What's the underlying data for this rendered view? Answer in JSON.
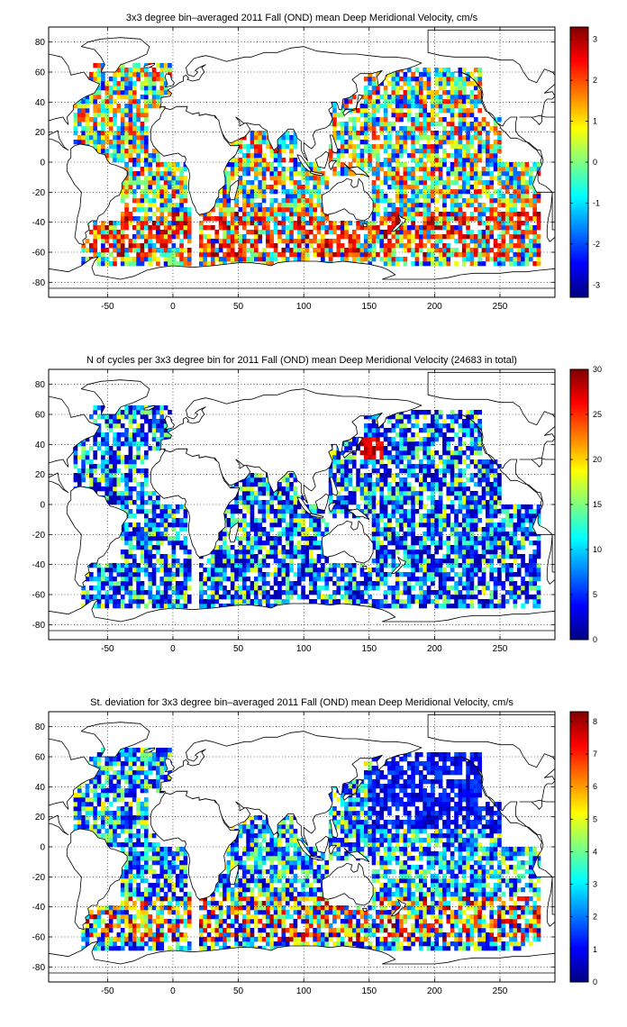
{
  "chart_data": [
    {
      "type": "heatmap",
      "title": "3x3 degree bin–averaged 2011 Fall (OND) mean Deep Meridional Velocity, cm/s",
      "xlabel": "",
      "ylabel": "",
      "xlim": [
        -95,
        292
      ],
      "ylim": [
        -90,
        90
      ],
      "xticks": [
        -50,
        0,
        50,
        100,
        150,
        200,
        250
      ],
      "yticks": [
        80,
        60,
        40,
        20,
        0,
        -20,
        -40,
        -60,
        -80
      ],
      "grid": true,
      "colormap": "jet",
      "clim": [
        -3.3,
        3.3
      ],
      "colorbar_ticks": [
        3,
        2,
        1,
        0,
        -1,
        -2,
        -3
      ],
      "bin_size_deg": 3,
      "field": "mean",
      "seed": 11
    },
    {
      "type": "heatmap",
      "title": "N of cycles per 3x3 degree bin for 2011 Fall (OND) mean Deep Meridional Velocity (24683 in total)",
      "xlabel": "",
      "ylabel": "",
      "xlim": [
        -95,
        292
      ],
      "ylim": [
        -90,
        90
      ],
      "xticks": [
        -50,
        0,
        50,
        100,
        150,
        200,
        250
      ],
      "yticks": [
        80,
        60,
        40,
        20,
        0,
        -20,
        -40,
        -60,
        -80
      ],
      "grid": true,
      "colormap": "jet",
      "clim": [
        0,
        30
      ],
      "colorbar_ticks": [
        30,
        25,
        20,
        15,
        10,
        5,
        0
      ],
      "bin_size_deg": 3,
      "field": "count",
      "seed": 23
    },
    {
      "type": "heatmap",
      "title": "St. deviation for 3x3 degree bin–averaged 2011 Fall (OND) mean Deep Meridional Velocity, cm/s",
      "xlabel": "",
      "ylabel": "",
      "xlim": [
        -95,
        292
      ],
      "ylim": [
        -90,
        90
      ],
      "xticks": [
        -50,
        0,
        50,
        100,
        150,
        200,
        250
      ],
      "yticks": [
        80,
        60,
        40,
        20,
        0,
        -20,
        -40,
        -60,
        -80
      ],
      "grid": true,
      "colormap": "jet",
      "clim": [
        0,
        8.3
      ],
      "colorbar_ticks": [
        8,
        7,
        6,
        5,
        4,
        3,
        2,
        1,
        0
      ],
      "bin_size_deg": 3,
      "field": "std",
      "seed": 37
    }
  ]
}
